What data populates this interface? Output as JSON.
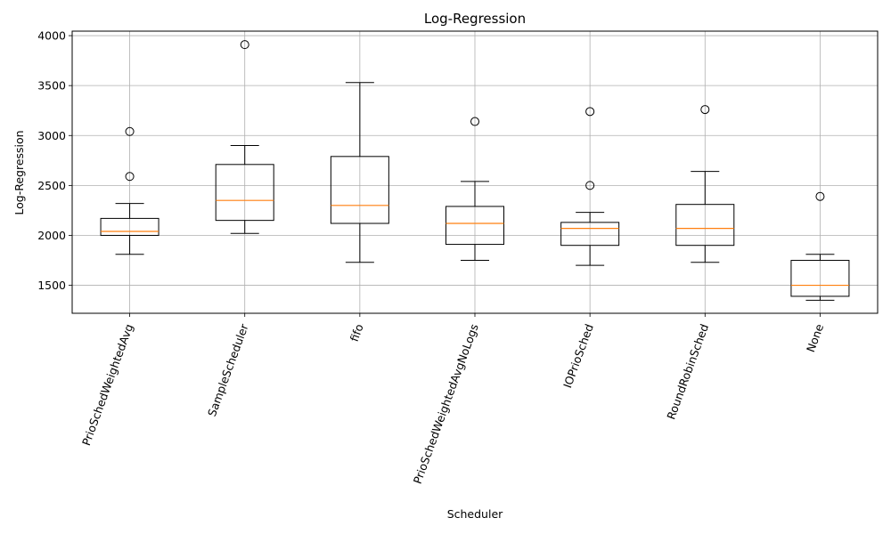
{
  "chart_data": {
    "type": "box",
    "title": "Log-Regression",
    "xlabel": "Scheduler",
    "ylabel": "Log-Regression",
    "ylim": [
      1220,
      4045
    ],
    "yticks": [
      1500,
      2000,
      2500,
      3000,
      3500,
      4000
    ],
    "grid": true,
    "x_tick_rotation": 70,
    "colors": {
      "box": "#000000",
      "median": "#ff7f0e",
      "grid": "#b0b0b0",
      "flier": "#000000"
    },
    "categories": [
      "PrioSchedWeightedAvg",
      "SampleScheduler",
      "fifo",
      "PrioSchedWeightedAvgNoLogs",
      "IOPrioSched",
      "RoundRobinSched",
      "None"
    ],
    "boxes": [
      {
        "name": "PrioSchedWeightedAvg",
        "whisker_low": 1810,
        "q1": 2000,
        "median": 2040,
        "q3": 2170,
        "whisker_high": 2320,
        "outliers": [
          2590,
          3040
        ]
      },
      {
        "name": "SampleScheduler",
        "whisker_low": 2020,
        "q1": 2150,
        "median": 2350,
        "q3": 2710,
        "whisker_high": 2900,
        "outliers": [
          3910
        ]
      },
      {
        "name": "fifo",
        "whisker_low": 1730,
        "q1": 2120,
        "median": 2300,
        "q3": 2790,
        "whisker_high": 3530,
        "outliers": []
      },
      {
        "name": "PrioSchedWeightedAvgNoLogs",
        "whisker_low": 1750,
        "q1": 1910,
        "median": 2120,
        "q3": 2290,
        "whisker_high": 2540,
        "outliers": [
          3140
        ]
      },
      {
        "name": "IOPrioSched",
        "whisker_low": 1700,
        "q1": 1900,
        "median": 2070,
        "q3": 2130,
        "whisker_high": 2230,
        "outliers": [
          2500,
          3240
        ]
      },
      {
        "name": "RoundRobinSched",
        "whisker_low": 1730,
        "q1": 1900,
        "median": 2070,
        "q3": 2310,
        "whisker_high": 2640,
        "outliers": [
          3260
        ]
      },
      {
        "name": "None",
        "whisker_low": 1350,
        "q1": 1390,
        "median": 1500,
        "q3": 1750,
        "whisker_high": 1810,
        "outliers": [
          2390
        ]
      }
    ]
  }
}
